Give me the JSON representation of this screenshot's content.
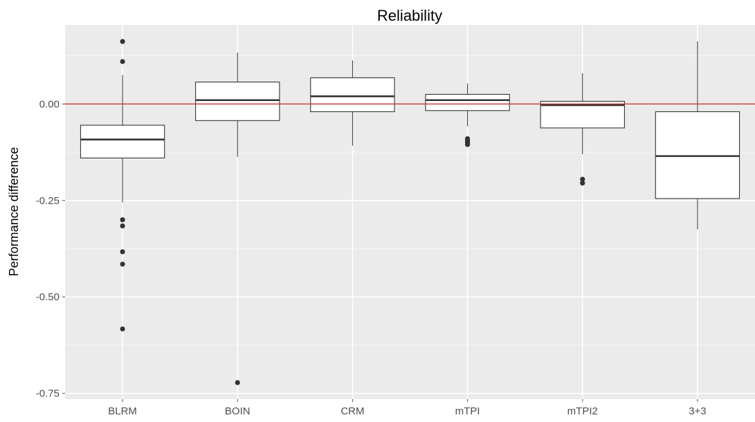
{
  "chart_data": {
    "type": "boxplot",
    "title": "Reliability",
    "xlabel": "",
    "ylabel": "Performance difference",
    "ylim": [
      -0.765,
      0.205
    ],
    "yticks": [
      0.0,
      -0.25,
      -0.5,
      -0.75
    ],
    "ytick_labels": [
      "0.00",
      "-0.25",
      "-0.50",
      "-0.75"
    ],
    "reference_line": {
      "y": 0,
      "color": "#cc3333"
    },
    "grid": true,
    "background": "#ebebeb",
    "categories": [
      "BLRM",
      "BOIN",
      "CRM",
      "mTPI",
      "mTPI2",
      "3+3"
    ],
    "boxes": [
      {
        "name": "BLRM",
        "whisker_low": -0.255,
        "q1": -0.14,
        "median": -0.092,
        "q3": -0.055,
        "whisker_high": 0.075,
        "outliers": [
          0.162,
          0.11,
          -0.3,
          -0.316,
          -0.383,
          -0.415,
          -0.583
        ]
      },
      {
        "name": "BOIN",
        "whisker_low": -0.137,
        "q1": -0.043,
        "median": 0.01,
        "q3": 0.057,
        "whisker_high": 0.133,
        "outliers": [
          -0.722
        ]
      },
      {
        "name": "CRM",
        "whisker_low": -0.108,
        "q1": -0.02,
        "median": 0.02,
        "q3": 0.068,
        "whisker_high": 0.113,
        "outliers": []
      },
      {
        "name": "mTPI",
        "whisker_low": -0.058,
        "q1": -0.017,
        "median": 0.01,
        "q3": 0.025,
        "whisker_high": 0.053,
        "outliers": [
          -0.09,
          -0.095,
          -0.1,
          -0.105
        ]
      },
      {
        "name": "mTPI2",
        "whisker_low": -0.13,
        "q1": -0.062,
        "median": -0.003,
        "q3": 0.007,
        "whisker_high": 0.08,
        "outliers": [
          -0.195,
          -0.205
        ]
      },
      {
        "name": "3+3",
        "whisker_low": -0.325,
        "q1": -0.245,
        "median": -0.135,
        "q3": -0.02,
        "whisker_high": 0.162,
        "outliers": []
      }
    ]
  }
}
